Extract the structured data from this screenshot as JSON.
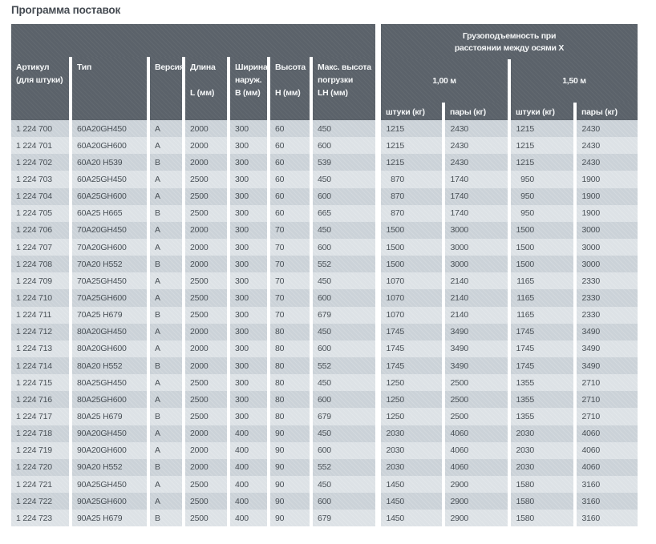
{
  "page_title": "Программа поставок",
  "colors": {
    "header_bg": "#5b626a",
    "header_text": "#f4f6f7",
    "row_odd": "#cbd2d8",
    "row_even": "#dde2e6",
    "cell_text": "#495056",
    "title_text": "#454b52",
    "page_bg": "#ffffff"
  },
  "table": {
    "left_headers": [
      {
        "name": [
          "Артикул",
          "(для штуки)"
        ],
        "unit": ""
      },
      {
        "name": [
          "Тип"
        ],
        "unit": ""
      },
      {
        "name": [
          "Версия"
        ],
        "unit": ""
      },
      {
        "name": [
          "Длина"
        ],
        "unit": "L (мм)"
      },
      {
        "name": [
          "Ширина",
          "наруж."
        ],
        "unit": "B (мм)"
      },
      {
        "name": [
          "Высота"
        ],
        "unit": "H (мм)"
      },
      {
        "name": [
          "Макс. высота",
          "погрузки"
        ],
        "unit": "LH (мм)"
      }
    ],
    "group_header": {
      "line1": "Грузоподъемность при",
      "line2": "расстоянии между осями X"
    },
    "groups": [
      {
        "label": "1,00 м",
        "sub": [
          "штуки (кг)",
          "пары (кг)"
        ]
      },
      {
        "label": "1,50 м",
        "sub": [
          "штуки (кг)",
          "пары (кг)"
        ]
      }
    ],
    "rows": [
      [
        "1 224 700",
        "60A20GH450",
        "A",
        "2000",
        "300",
        "60",
        "450",
        "1215",
        "2430",
        "1215",
        "2430"
      ],
      [
        "1 224 701",
        "60A20GH600",
        "A",
        "2000",
        "300",
        "60",
        "600",
        "1215",
        "2430",
        "1215",
        "2430"
      ],
      [
        "1 224 702",
        "60A20 H539",
        "B",
        "2000",
        "300",
        "60",
        "539",
        "1215",
        "2430",
        "1215",
        "2430"
      ],
      [
        "1 224 703",
        "60A25GH450",
        "A",
        "2500",
        "300",
        "60",
        "450",
        "870",
        "1740",
        "950",
        "1900"
      ],
      [
        "1 224 704",
        "60A25GH600",
        "A",
        "2500",
        "300",
        "60",
        "600",
        "870",
        "1740",
        "950",
        "1900"
      ],
      [
        "1 224 705",
        "60A25 H665",
        "B",
        "2500",
        "300",
        "60",
        "665",
        "870",
        "1740",
        "950",
        "1900"
      ],
      [
        "1 224 706",
        "70A20GH450",
        "A",
        "2000",
        "300",
        "70",
        "450",
        "1500",
        "3000",
        "1500",
        "3000"
      ],
      [
        "1 224 707",
        "70A20GH600",
        "A",
        "2000",
        "300",
        "70",
        "600",
        "1500",
        "3000",
        "1500",
        "3000"
      ],
      [
        "1 224 708",
        "70A20 H552",
        "B",
        "2000",
        "300",
        "70",
        "552",
        "1500",
        "3000",
        "1500",
        "3000"
      ],
      [
        "1 224 709",
        "70A25GH450",
        "A",
        "2500",
        "300",
        "70",
        "450",
        "1070",
        "2140",
        "1165",
        "2330"
      ],
      [
        "1 224 710",
        "70A25GH600",
        "A",
        "2500",
        "300",
        "70",
        "600",
        "1070",
        "2140",
        "1165",
        "2330"
      ],
      [
        "1 224 711",
        "70A25 H679",
        "B",
        "2500",
        "300",
        "70",
        "679",
        "1070",
        "2140",
        "1165",
        "2330"
      ],
      [
        "1 224 712",
        "80A20GH450",
        "A",
        "2000",
        "300",
        "80",
        "450",
        "1745",
        "3490",
        "1745",
        "3490"
      ],
      [
        "1 224 713",
        "80A20GH600",
        "A",
        "2000",
        "300",
        "80",
        "600",
        "1745",
        "3490",
        "1745",
        "3490"
      ],
      [
        "1 224 714",
        "80A20 H552",
        "B",
        "2000",
        "300",
        "80",
        "552",
        "1745",
        "3490",
        "1745",
        "3490"
      ],
      [
        "1 224 715",
        "80A25GH450",
        "A",
        "2500",
        "300",
        "80",
        "450",
        "1250",
        "2500",
        "1355",
        "2710"
      ],
      [
        "1 224 716",
        "80A25GH600",
        "A",
        "2500",
        "300",
        "80",
        "600",
        "1250",
        "2500",
        "1355",
        "2710"
      ],
      [
        "1 224 717",
        "80A25 H679",
        "B",
        "2500",
        "300",
        "80",
        "679",
        "1250",
        "2500",
        "1355",
        "2710"
      ],
      [
        "1 224 718",
        "90A20GH450",
        "A",
        "2000",
        "400",
        "90",
        "450",
        "2030",
        "4060",
        "2030",
        "4060"
      ],
      [
        "1 224 719",
        "90A20GH600",
        "A",
        "2000",
        "400",
        "90",
        "600",
        "2030",
        "4060",
        "2030",
        "4060"
      ],
      [
        "1 224 720",
        "90A20 H552",
        "B",
        "2000",
        "400",
        "90",
        "552",
        "2030",
        "4060",
        "2030",
        "4060"
      ],
      [
        "1 224 721",
        "90A25GH450",
        "A",
        "2500",
        "400",
        "90",
        "450",
        "1450",
        "2900",
        "1580",
        "3160"
      ],
      [
        "1 224 722",
        "90A25GH600",
        "A",
        "2500",
        "400",
        "90",
        "600",
        "1450",
        "2900",
        "1580",
        "3160"
      ],
      [
        "1 224 723",
        "90A25 H679",
        "B",
        "2500",
        "400",
        "90",
        "679",
        "1450",
        "2900",
        "1580",
        "3160"
      ]
    ]
  }
}
